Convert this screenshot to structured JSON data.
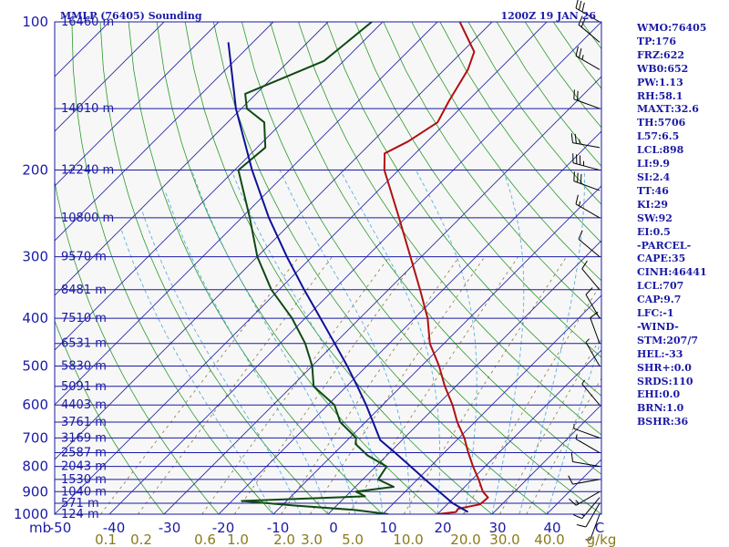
{
  "chart_data": {
    "type": "line",
    "title": "MMLP (76405) Sounding",
    "valid_time": "1200Z 19 JAN 26",
    "pressure_levels": [
      100,
      200,
      300,
      400,
      500,
      600,
      700,
      800,
      900,
      1000
    ],
    "pressure_axis_unit": "mb",
    "height_labels": [
      {
        "p": 100,
        "text": "16460 m"
      },
      {
        "p": 150,
        "text": "14010 m"
      },
      {
        "p": 200,
        "text": "12240 m"
      },
      {
        "p": 250,
        "text": "10800 m"
      },
      {
        "p": 300,
        "text": "9570 m"
      },
      {
        "p": 350,
        "text": "8481 m"
      },
      {
        "p": 400,
        "text": "7510 m"
      },
      {
        "p": 450,
        "text": "6531 m"
      },
      {
        "p": 500,
        "text": "5830 m"
      },
      {
        "p": 550,
        "text": "5091 m"
      },
      {
        "p": 600,
        "text": "4403 m"
      },
      {
        "p": 650,
        "text": "3761 m"
      },
      {
        "p": 700,
        "text": "3169 m"
      },
      {
        "p": 750,
        "text": "2587 m"
      },
      {
        "p": 800,
        "text": "2043 m"
      },
      {
        "p": 850,
        "text": "1530 m"
      },
      {
        "p": 900,
        "text": "1040 m"
      },
      {
        "p": 950,
        "text": "571 m"
      },
      {
        "p": 1000,
        "text": "124 m"
      }
    ],
    "temperature_ticks": [
      "-50",
      "-40",
      "-30",
      "-20",
      "-10",
      "0",
      "10",
      "20",
      "30",
      "40",
      "C"
    ],
    "mixing_ratio_labels": [
      "0.1",
      "0.2",
      "0.6",
      "1.0",
      "2.0",
      "3.0",
      "5.0",
      "10.0",
      "20.0",
      "30.0",
      "40.0"
    ],
    "mixing_ratio_unit": "g/kg",
    "series": [
      {
        "color": "#b01010",
        "points": [
          {
            "p": 1000,
            "t": 20.0
          },
          {
            "p": 990,
            "t": 23.0
          },
          {
            "p": 975,
            "t": 22.8
          },
          {
            "p": 955,
            "t": 26.0
          },
          {
            "p": 925,
            "t": 26.2
          },
          {
            "p": 900,
            "t": 24.2
          },
          {
            "p": 850,
            "t": 21.2
          },
          {
            "p": 800,
            "t": 17.8
          },
          {
            "p": 750,
            "t": 14.4
          },
          {
            "p": 700,
            "t": 11.0
          },
          {
            "p": 650,
            "t": 6.8
          },
          {
            "p": 600,
            "t": 2.8
          },
          {
            "p": 550,
            "t": -2.0
          },
          {
            "p": 500,
            "t": -6.8
          },
          {
            "p": 450,
            "t": -12.6
          },
          {
            "p": 400,
            "t": -17.6
          },
          {
            "p": 350,
            "t": -24.2
          },
          {
            "p": 300,
            "t": -32.0
          },
          {
            "p": 250,
            "t": -41.2
          },
          {
            "p": 200,
            "t": -52.6
          },
          {
            "p": 185,
            "t": -55.6
          },
          {
            "p": 175,
            "t": -53.5
          },
          {
            "p": 160,
            "t": -51.6
          },
          {
            "p": 145,
            "t": -53.4
          },
          {
            "p": 125,
            "t": -55.7
          },
          {
            "p": 115,
            "t": -57.8
          },
          {
            "p": 100,
            "t": -65.9
          }
        ]
      },
      {
        "color": "#0f4a12",
        "points": [
          {
            "p": 1000,
            "t": 11.0
          },
          {
            "p": 980,
            "t": 4.0
          },
          {
            "p": 960,
            "t": -8.0
          },
          {
            "p": 940,
            "t": -18.2
          },
          {
            "p": 920,
            "t": 3.5
          },
          {
            "p": 900,
            "t": 1.0
          },
          {
            "p": 880,
            "t": 7.0
          },
          {
            "p": 850,
            "t": 2.8
          },
          {
            "p": 800,
            "t": 2.0
          },
          {
            "p": 760,
            "t": -3.5
          },
          {
            "p": 720,
            "t": -7.8
          },
          {
            "p": 700,
            "t": -8.8
          },
          {
            "p": 650,
            "t": -14.6
          },
          {
            "p": 600,
            "t": -18.8
          },
          {
            "p": 550,
            "t": -26.0
          },
          {
            "p": 500,
            "t": -30.0
          },
          {
            "p": 450,
            "t": -35.4
          },
          {
            "p": 400,
            "t": -42.4
          },
          {
            "p": 350,
            "t": -51.4
          },
          {
            "p": 300,
            "t": -60.0
          },
          {
            "p": 250,
            "t": -68.5
          },
          {
            "p": 200,
            "t": -79.3
          },
          {
            "p": 180,
            "t": -78.5
          },
          {
            "p": 160,
            "t": -83.3
          },
          {
            "p": 150,
            "t": -89.0
          },
          {
            "p": 140,
            "t": -92.0
          },
          {
            "p": 120,
            "t": -83.6
          },
          {
            "p": 100,
            "t": -82.0
          }
        ]
      },
      {
        "color": "#10109a",
        "points": [
          {
            "p": 990,
            "t": 25.2
          },
          {
            "p": 950,
            "t": 20.8
          },
          {
            "p": 900,
            "t": 16.2
          },
          {
            "p": 850,
            "t": 11.4
          },
          {
            "p": 800,
            "t": 6.4
          },
          {
            "p": 750,
            "t": 1.0
          },
          {
            "p": 707,
            "t": -4.0
          },
          {
            "p": 650,
            "t": -8.6
          },
          {
            "p": 600,
            "t": -13.0
          },
          {
            "p": 550,
            "t": -18.0
          },
          {
            "p": 500,
            "t": -23.6
          },
          {
            "p": 450,
            "t": -30.0
          },
          {
            "p": 400,
            "t": -37.2
          },
          {
            "p": 350,
            "t": -45.4
          },
          {
            "p": 300,
            "t": -54.6
          },
          {
            "p": 250,
            "t": -65.0
          },
          {
            "p": 200,
            "t": -76.8
          },
          {
            "p": 150,
            "t": -91.0
          },
          {
            "p": 110,
            "t": -104.5
          }
        ]
      }
    ],
    "wind_barbs": [
      {
        "p": 1000,
        "dir": 200,
        "kt": 5
      },
      {
        "p": 950,
        "dir": 210,
        "kt": 10
      },
      {
        "p": 925,
        "dir": 220,
        "kt": 15
      },
      {
        "p": 900,
        "dir": 240,
        "kt": 15
      },
      {
        "p": 850,
        "dir": 260,
        "kt": 10
      },
      {
        "p": 800,
        "dir": 280,
        "kt": 10
      },
      {
        "p": 750,
        "dir": 300,
        "kt": 5
      },
      {
        "p": 700,
        "dir": 290,
        "kt": 5
      },
      {
        "p": 600,
        "dir": 320,
        "kt": 5
      },
      {
        "p": 500,
        "dir": 330,
        "kt": 5
      },
      {
        "p": 450,
        "dir": 340,
        "kt": 10
      },
      {
        "p": 400,
        "dir": 330,
        "kt": 10
      },
      {
        "p": 350,
        "dir": 320,
        "kt": 10
      },
      {
        "p": 300,
        "dir": 310,
        "kt": 10
      },
      {
        "p": 250,
        "dir": 300,
        "kt": 15
      },
      {
        "p": 220,
        "dir": 290,
        "kt": 30
      },
      {
        "p": 200,
        "dir": 285,
        "kt": 35
      },
      {
        "p": 180,
        "dir": 280,
        "kt": 25
      },
      {
        "p": 150,
        "dir": 290,
        "kt": 20
      },
      {
        "p": 125,
        "dir": 300,
        "kt": 25
      },
      {
        "p": 110,
        "dir": 310,
        "kt": 20
      },
      {
        "p": 100,
        "dir": 300,
        "kt": 30
      }
    ]
  },
  "indices": [
    "WMO:76405",
    "TP:176",
    "FRZ:622",
    "WB0:652",
    "PW:1.13",
    "RH:58.1",
    "MAXT:32.6",
    "TH:5706",
    "L57:6.5",
    "LCL:898",
    "LI:9.9",
    "SI:2.4",
    "TT:46",
    "KI:29",
    "SW:92",
    "EI:0.5",
    "-PARCEL-",
    "CAPE:35",
    "CINH:46441",
    "LCL:707",
    "CAP:9.7",
    "LFC:-1",
    "-WIND-",
    "STM:207/7",
    "HEL:-33",
    "SHR+:0.0",
    "SRDS:110",
    "EHI:0.0",
    "BRN:1.0",
    "BSHR:36"
  ]
}
